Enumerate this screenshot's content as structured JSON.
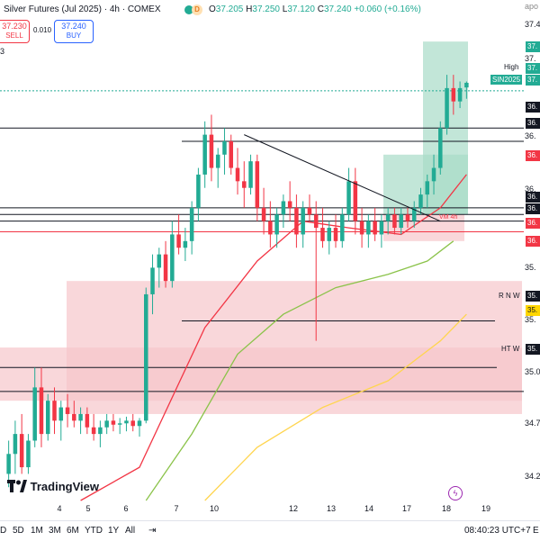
{
  "header": {
    "symbol": "Silver Futures (Jul 2025) · 4h · COMEX",
    "ohlc_prefix": "O",
    "open": "37.205",
    "high_prefix": "H",
    "high": "37.250",
    "low_prefix": "L",
    "low": "37.120",
    "close_prefix": "C",
    "close": "37.240",
    "change": "+0.060 (+0.16%)",
    "d_badge": "D"
  },
  "trade": {
    "sell_price": "37.230",
    "sell_label": "SELL",
    "spread": "0.010",
    "buy_price": "37.240",
    "buy_label": "BUY",
    "qty": "3"
  },
  "right_axis_text": {
    "t1": "apo",
    "t2": "37.4",
    "t3": "37.",
    "t4": "36.",
    "t5": "36.",
    "t6": "35.",
    "t7": "35.",
    "t8": "35.0",
    "t9": "34.7",
    "t10": "34.2"
  },
  "price_labels": {
    "p1": "37.",
    "p2": "37.",
    "p3": "37.",
    "p4": "36.",
    "p5": "36.",
    "p6": "36.",
    "p7": "36.",
    "p8": "36.",
    "p9": "36.",
    "p10": "36.",
    "p11": "35.",
    "p12": "35.",
    "p13": "35."
  },
  "tags": {
    "high": "High",
    "sin": "SIN2025",
    "rnw": "R N W",
    "htw": "HT W",
    "vm": "VM 4h"
  },
  "x_axis": {
    "ticks": [
      "4",
      "5",
      "6",
      "7",
      "10",
      "12",
      "13",
      "14",
      "17",
      "18",
      "19"
    ]
  },
  "bottom": {
    "ranges": [
      "D",
      "5D",
      "1M",
      "3M",
      "6M",
      "YTD",
      "1Y",
      "All"
    ],
    "time": "08:40:23 UTC+7",
    "e": "E"
  },
  "brand": {
    "logo_text": "TradingView"
  },
  "colors": {
    "up": "#22ab94",
    "down": "#f23645",
    "ma_fast": "#f23645",
    "ma_mid": "#8bc34a",
    "ma_slow": "#ffd54f",
    "zone_red": "#f7c6cb",
    "zone_green": "#a8dcc7"
  },
  "chart_data": {
    "type": "candlestick",
    "title": "Silver Futures (Jul 2025) · 4h · COMEX",
    "timeframe": "4h",
    "y_range": [
      34.1,
      37.7
    ],
    "x_ticks": [
      "4",
      "5",
      "6",
      "7",
      "10",
      "12",
      "13",
      "14",
      "17",
      "18",
      "19"
    ],
    "candles": [
      {
        "o": 34.3,
        "h": 34.55,
        "l": 34.2,
        "c": 34.45
      },
      {
        "o": 34.45,
        "h": 34.7,
        "l": 34.3,
        "c": 34.6
      },
      {
        "o": 34.6,
        "h": 34.75,
        "l": 34.3,
        "c": 34.35
      },
      {
        "o": 34.35,
        "h": 34.6,
        "l": 34.3,
        "c": 34.55
      },
      {
        "o": 34.55,
        "h": 35.1,
        "l": 34.5,
        "c": 34.95
      },
      {
        "o": 34.95,
        "h": 35.1,
        "l": 34.5,
        "c": 34.6
      },
      {
        "o": 34.6,
        "h": 34.9,
        "l": 34.55,
        "c": 34.85
      },
      {
        "o": 34.85,
        "h": 34.95,
        "l": 34.6,
        "c": 34.7
      },
      {
        "o": 34.7,
        "h": 34.85,
        "l": 34.55,
        "c": 34.8
      },
      {
        "o": 34.8,
        "h": 34.9,
        "l": 34.65,
        "c": 34.75
      },
      {
        "o": 34.75,
        "h": 34.85,
        "l": 34.65,
        "c": 34.7
      },
      {
        "o": 34.7,
        "h": 34.8,
        "l": 34.6,
        "c": 34.75
      },
      {
        "o": 34.75,
        "h": 34.8,
        "l": 34.6,
        "c": 34.65
      },
      {
        "o": 34.65,
        "h": 34.75,
        "l": 34.55,
        "c": 34.6
      },
      {
        "o": 34.6,
        "h": 34.7,
        "l": 34.5,
        "c": 34.65
      },
      {
        "o": 34.65,
        "h": 34.75,
        "l": 34.6,
        "c": 34.7
      },
      {
        "o": 34.7,
        "h": 34.75,
        "l": 34.62,
        "c": 34.67
      },
      {
        "o": 34.67,
        "h": 34.72,
        "l": 34.6,
        "c": 34.68
      },
      {
        "o": 34.68,
        "h": 34.73,
        "l": 34.62,
        "c": 34.7
      },
      {
        "o": 34.7,
        "h": 34.75,
        "l": 34.62,
        "c": 34.66
      },
      {
        "o": 34.66,
        "h": 34.72,
        "l": 34.58,
        "c": 34.7
      },
      {
        "o": 34.7,
        "h": 35.7,
        "l": 34.68,
        "c": 35.65
      },
      {
        "o": 35.65,
        "h": 35.95,
        "l": 35.5,
        "c": 35.85
      },
      {
        "o": 35.85,
        "h": 36.0,
        "l": 35.7,
        "c": 35.95
      },
      {
        "o": 35.95,
        "h": 36.05,
        "l": 35.7,
        "c": 35.75
      },
      {
        "o": 35.75,
        "h": 36.2,
        "l": 35.7,
        "c": 36.1
      },
      {
        "o": 36.1,
        "h": 36.25,
        "l": 35.95,
        "c": 36.0
      },
      {
        "o": 36.0,
        "h": 36.15,
        "l": 35.9,
        "c": 36.05
      },
      {
        "o": 36.05,
        "h": 36.35,
        "l": 35.95,
        "c": 36.3
      },
      {
        "o": 36.3,
        "h": 36.6,
        "l": 36.2,
        "c": 36.55
      },
      {
        "o": 36.55,
        "h": 36.95,
        "l": 36.45,
        "c": 36.85
      },
      {
        "o": 36.85,
        "h": 37.0,
        "l": 36.5,
        "c": 36.6
      },
      {
        "o": 36.6,
        "h": 36.75,
        "l": 36.45,
        "c": 36.7
      },
      {
        "o": 36.7,
        "h": 36.9,
        "l": 36.55,
        "c": 36.8
      },
      {
        "o": 36.8,
        "h": 36.85,
        "l": 36.55,
        "c": 36.6
      },
      {
        "o": 36.6,
        "h": 36.75,
        "l": 36.4,
        "c": 36.5
      },
      {
        "o": 36.5,
        "h": 36.65,
        "l": 36.3,
        "c": 36.45
      },
      {
        "o": 36.45,
        "h": 36.7,
        "l": 36.4,
        "c": 36.65
      },
      {
        "o": 36.65,
        "h": 36.7,
        "l": 36.2,
        "c": 36.3
      },
      {
        "o": 36.3,
        "h": 36.45,
        "l": 36.1,
        "c": 36.2
      },
      {
        "o": 36.2,
        "h": 36.35,
        "l": 36.0,
        "c": 36.1
      },
      {
        "o": 36.1,
        "h": 36.3,
        "l": 36.0,
        "c": 36.25
      },
      {
        "o": 36.25,
        "h": 36.4,
        "l": 36.15,
        "c": 36.35
      },
      {
        "o": 36.35,
        "h": 36.5,
        "l": 36.2,
        "c": 36.3
      },
      {
        "o": 36.3,
        "h": 36.4,
        "l": 36.0,
        "c": 36.1
      },
      {
        "o": 36.1,
        "h": 36.35,
        "l": 36.0,
        "c": 36.3
      },
      {
        "o": 36.3,
        "h": 36.4,
        "l": 36.2,
        "c": 36.25
      },
      {
        "o": 36.25,
        "h": 36.35,
        "l": 35.3,
        "c": 36.15
      },
      {
        "o": 36.15,
        "h": 36.3,
        "l": 36.0,
        "c": 36.05
      },
      {
        "o": 36.05,
        "h": 36.2,
        "l": 35.95,
        "c": 36.15
      },
      {
        "o": 36.15,
        "h": 36.25,
        "l": 36.0,
        "c": 36.05
      },
      {
        "o": 36.05,
        "h": 36.3,
        "l": 36.0,
        "c": 36.25
      },
      {
        "o": 36.25,
        "h": 36.6,
        "l": 36.2,
        "c": 36.5
      },
      {
        "o": 36.5,
        "h": 36.6,
        "l": 36.1,
        "c": 36.2
      },
      {
        "o": 36.2,
        "h": 36.3,
        "l": 36.0,
        "c": 36.1
      },
      {
        "o": 36.1,
        "h": 36.25,
        "l": 36.0,
        "c": 36.2
      },
      {
        "o": 36.2,
        "h": 36.3,
        "l": 36.05,
        "c": 36.1
      },
      {
        "o": 36.1,
        "h": 36.25,
        "l": 36.0,
        "c": 36.2
      },
      {
        "o": 36.2,
        "h": 36.3,
        "l": 36.1,
        "c": 36.25
      },
      {
        "o": 36.25,
        "h": 36.3,
        "l": 36.1,
        "c": 36.15
      },
      {
        "o": 36.15,
        "h": 36.3,
        "l": 36.1,
        "c": 36.25
      },
      {
        "o": 36.25,
        "h": 36.3,
        "l": 36.15,
        "c": 36.2
      },
      {
        "o": 36.2,
        "h": 36.35,
        "l": 36.15,
        "c": 36.3
      },
      {
        "o": 36.3,
        "h": 36.45,
        "l": 36.25,
        "c": 36.4
      },
      {
        "o": 36.4,
        "h": 36.55,
        "l": 36.3,
        "c": 36.5
      },
      {
        "o": 36.5,
        "h": 36.7,
        "l": 36.4,
        "c": 36.6
      },
      {
        "o": 36.6,
        "h": 36.95,
        "l": 36.55,
        "c": 36.9
      },
      {
        "o": 36.9,
        "h": 37.3,
        "l": 36.85,
        "c": 37.2
      },
      {
        "o": 37.2,
        "h": 37.3,
        "l": 37.0,
        "c": 37.1
      },
      {
        "o": 37.1,
        "h": 37.25,
        "l": 37.05,
        "c": 37.2
      },
      {
        "o": 37.205,
        "h": 37.25,
        "l": 37.12,
        "c": 37.24
      }
    ],
    "moving_averages": [
      {
        "name": "fast",
        "color": "#f23645",
        "points": [
          [
            11,
            34.1
          ],
          [
            20,
            34.35
          ],
          [
            30,
            35.4
          ],
          [
            38,
            35.9
          ],
          [
            45,
            36.2
          ],
          [
            52,
            36.15
          ],
          [
            60,
            36.1
          ],
          [
            66,
            36.3
          ],
          [
            70,
            36.55
          ]
        ]
      },
      {
        "name": "mid",
        "color": "#8bc34a",
        "points": [
          [
            21,
            34.1
          ],
          [
            28,
            34.6
          ],
          [
            35,
            35.2
          ],
          [
            42,
            35.5
          ],
          [
            50,
            35.7
          ],
          [
            58,
            35.8
          ],
          [
            64,
            35.9
          ],
          [
            68,
            36.05
          ]
        ]
      },
      {
        "name": "slow",
        "color": "#ffd54f",
        "points": [
          [
            30,
            34.1
          ],
          [
            38,
            34.5
          ],
          [
            48,
            34.8
          ],
          [
            58,
            35.0
          ],
          [
            66,
            35.3
          ],
          [
            70,
            35.5
          ]
        ]
      }
    ],
    "horizontal_levels": [
      {
        "price": 37.18,
        "label": "",
        "style": "dotted",
        "color": "#22ab94"
      },
      {
        "price": 36.9,
        "label": "",
        "style": "solid"
      },
      {
        "price": 36.8,
        "label": "",
        "style": "solid"
      },
      {
        "price": 36.3,
        "label": "",
        "style": "solid"
      },
      {
        "price": 36.25,
        "label": "",
        "style": "solid"
      },
      {
        "price": 36.2,
        "label": "",
        "style": "solid"
      },
      {
        "price": 36.12,
        "label": "",
        "style": "solid",
        "color": "#f23645"
      },
      {
        "price": 35.45,
        "label": "R N W",
        "style": "solid"
      },
      {
        "price": 35.1,
        "label": "HT W",
        "style": "solid"
      },
      {
        "price": 34.92,
        "label": "",
        "style": "solid"
      }
    ],
    "zones": [
      {
        "color": "#f7c6cb",
        "y_top": 35.75,
        "y_bottom": 34.75
      },
      {
        "color": "#f7c6cb",
        "y_top": 35.25,
        "y_bottom": 34.85
      },
      {
        "color": "#a8dcc7",
        "y_top": 37.55,
        "y_bottom": 36.25
      },
      {
        "color": "#a8dcc7",
        "y_top": 36.7,
        "y_bottom": 36.25
      },
      {
        "color": "#f7c6cb",
        "y_top": 36.25,
        "y_bottom": 36.05
      }
    ],
    "trendline": {
      "from": [
        36,
        36.85
      ],
      "to": [
        66,
        36.2
      ]
    }
  }
}
